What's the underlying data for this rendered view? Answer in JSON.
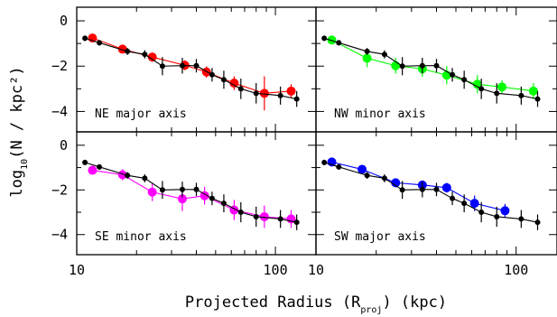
{
  "chart_data": {
    "type": "scatter",
    "xlabel": "Projected Radius (R",
    "xlabel_sub": "proj",
    "xlabel_suffix": ") (kpc)",
    "ylabel": "log",
    "ylabel_sub": "10",
    "ylabel_suffix": "(N / kpc²)",
    "x_scale": "log",
    "xlim": [
      10,
      160
    ],
    "ylim": [
      -4.9,
      0.6
    ],
    "x_ticks": [
      10,
      100
    ],
    "x_tick_labels": [
      "10",
      "100"
    ],
    "y_ticks": [
      0,
      -2,
      -4
    ],
    "y_tick_labels": [
      "0",
      "−2",
      "−4"
    ],
    "reference_series": {
      "color": "#000000",
      "x": [
        11,
        13,
        18,
        22,
        27,
        34,
        40,
        48,
        55,
        67,
        80,
        106,
        128
      ],
      "y": [
        -0.77,
        -0.97,
        -1.35,
        -1.48,
        -2.0,
        -1.98,
        -1.98,
        -2.38,
        -2.6,
        -3.0,
        -3.2,
        -3.3,
        -3.45
      ],
      "yerr": [
        0.12,
        0.12,
        0.15,
        0.18,
        0.4,
        0.35,
        0.3,
        0.3,
        0.4,
        0.45,
        0.45,
        0.4,
        0.35
      ]
    },
    "panels": [
      {
        "label": "NE major axis",
        "position": "top-left",
        "color": "#ff0000",
        "x": [
          12,
          17,
          24,
          35,
          45,
          62,
          88,
          120
        ],
        "y": [
          -0.76,
          -1.25,
          -1.6,
          -1.96,
          -2.26,
          -2.75,
          -3.2,
          -3.1
        ],
        "yerr": [
          0.1,
          0.15,
          0.2,
          0.22,
          0.25,
          0.3,
          0.75,
          0.3
        ]
      },
      {
        "label": "NW minor axis",
        "position": "top-right",
        "color": "#00ff00",
        "x": [
          12,
          18,
          25,
          34,
          45,
          64,
          85,
          122
        ],
        "y": [
          -0.85,
          -1.65,
          -1.98,
          -2.12,
          -2.4,
          -2.8,
          -2.92,
          -3.1
        ],
        "yerr": [
          0.12,
          0.4,
          0.35,
          0.35,
          0.4,
          0.4,
          0.3,
          0.35
        ]
      },
      {
        "label": "SE minor axis",
        "position": "bottom-left",
        "color": "#ff00ff",
        "x": [
          12,
          17,
          24,
          34,
          44,
          62,
          88,
          120
        ],
        "y": [
          -1.12,
          -1.32,
          -2.1,
          -2.4,
          -2.26,
          -2.9,
          -3.2,
          -3.3
        ],
        "yerr": [
          0.15,
          0.25,
          0.4,
          0.55,
          0.4,
          0.45,
          0.5,
          0.4
        ]
      },
      {
        "label": "SW major axis",
        "position": "bottom-right",
        "color": "#0000ff",
        "x": [
          12,
          17,
          25,
          34,
          45,
          62,
          88
        ],
        "y": [
          -0.75,
          -1.08,
          -1.68,
          -1.78,
          -1.9,
          -2.6,
          -2.93
        ],
        "yerr": [
          0.1,
          0.15,
          0.2,
          0.2,
          0.22,
          0.35,
          0.3
        ]
      }
    ]
  }
}
